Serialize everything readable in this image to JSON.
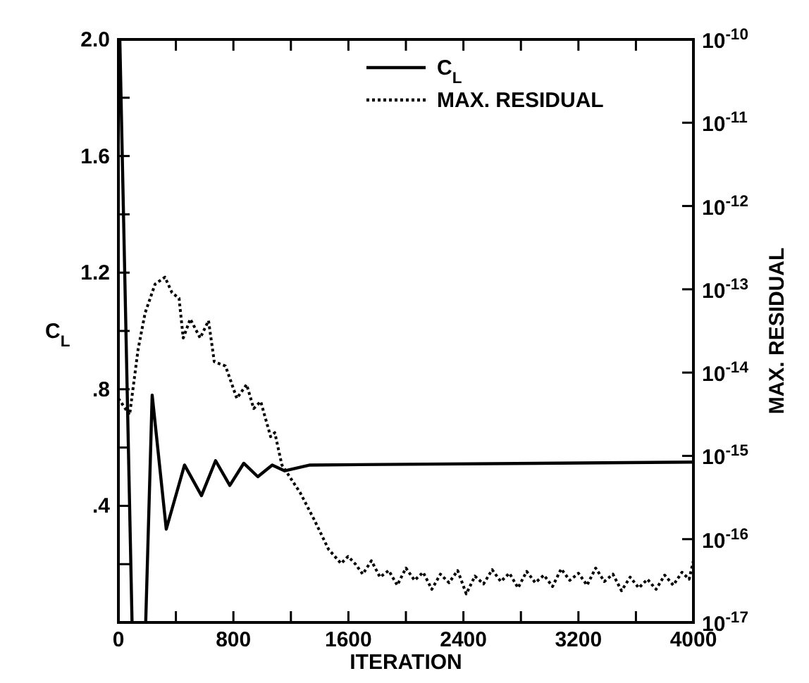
{
  "chart_data": {
    "type": "line",
    "xlabel": "ITERATION",
    "ylabel": "C$_{L}$",
    "y2label": "MAX. RESIDUAL",
    "legend": "top right",
    "grid": false,
    "xlim": [
      0,
      4000
    ],
    "xticks": [
      0,
      {
        "value": 400,
        "label": null
      },
      800,
      {
        "value": 1200,
        "label": null
      },
      1600,
      {
        "value": 2000,
        "label": null
      },
      2400,
      {
        "value": 2800,
        "label": null
      },
      3200,
      {
        "value": 3600,
        "label": null
      },
      4000
    ],
    "ylim": [
      0,
      2
    ],
    "yticks": [
      {
        "value": 0,
        "label": null
      },
      {
        "value": 0.2,
        "label": null
      },
      {
        "value": 0.4,
        "label": ".4"
      },
      {
        "value": 0.6,
        "label": null
      },
      {
        "value": 0.8,
        "label": ".8"
      },
      {
        "value": 1.0,
        "label": null
      },
      {
        "value": 1.2,
        "label": "1.2"
      },
      {
        "value": 1.4,
        "label": null
      },
      {
        "value": 1.6,
        "label": "1.6"
      },
      {
        "value": 1.8,
        "label": null
      },
      {
        "value": 2.0,
        "label": "2.0"
      }
    ],
    "log": "y2",
    "y2lim": [
      1e-17,
      1e-10
    ],
    "y2ticks": [
      {
        "value": 1e-17,
        "label": "10$^{-17}$"
      },
      {
        "value": 1e-16,
        "label": "10$^{-16}$"
      },
      {
        "value": 1e-15,
        "label": "10$^{-15}$"
      },
      {
        "value": 1e-14,
        "label": "10$^{-14}$"
      },
      {
        "value": 1e-13,
        "label": "10$^{-13}$"
      },
      {
        "value": 1e-12,
        "label": "10$^{-12}$"
      },
      {
        "value": 1e-11,
        "label": "10$^{-11}$"
      },
      {
        "value": 1e-10,
        "label": "10$^{-10}$"
      }
    ],
    "series": [
      {
        "name": "C$_{L}$",
        "color": "#000000",
        "line_style": "solid",
        "x": [
          10,
          95,
          150,
          190,
          235,
          333,
          460,
          578,
          676,
          775,
          872,
          970,
          1070,
          1157,
          1333,
          4000
        ],
        "values": [
          2.0,
          0,
          null,
          0,
          0.78,
          0.32,
          0.54,
          0.435,
          0.555,
          0.47,
          0.546,
          0.5,
          0.54,
          0.52,
          0.54,
          0.55
        ]
      },
      {
        "name": "MAX. RESIDUAL",
        "color": "#000000",
        "line_style": "dotted",
        "axis": "y2",
        "x": [
          0,
          78,
          137,
          186,
          255,
          324,
          373,
          422,
          451,
          500,
          569,
          627,
          667,
          745,
          824,
          892,
          941,
          990,
          1059,
          1088,
          1137,
          1265,
          1363,
          1461,
          1549,
          1598,
          1650,
          1700,
          1760,
          1820,
          1880,
          1940,
          2000,
          2060,
          2120,
          2180,
          2240,
          2300,
          2360,
          2420,
          2480,
          2540,
          2600,
          2660,
          2720,
          2780,
          2840,
          2900,
          2960,
          3020,
          3080,
          3140,
          3200,
          3260,
          3320,
          3380,
          3440,
          3500,
          3560,
          3620,
          3680,
          3740,
          3800,
          3860,
          3920,
          3970,
          4000
        ],
        "values": [
          4.9e-15,
          3.1e-15,
          1.9e-14,
          5.2e-14,
          1.15e-13,
          1.4e-13,
          9.1e-14,
          7.8e-14,
          2.6e-14,
          4.4e-14,
          2.6e-14,
          4.2e-14,
          1.35e-14,
          1.2e-14,
          4.9e-15,
          7.2e-15,
          3.7e-15,
          4.5e-15,
          1.7e-15,
          1.9e-15,
          7.8e-16,
          3.6e-16,
          1.7e-16,
          7.6e-17,
          5.1e-17,
          6.2e-17,
          5e-17,
          3.8e-17,
          5.5e-17,
          3.5e-17,
          4.2e-17,
          2.8e-17,
          4.5e-17,
          3.2e-17,
          4e-17,
          2.5e-17,
          3.8e-17,
          3e-17,
          4.2e-17,
          2.2e-17,
          3.6e-17,
          2.9e-17,
          4.3e-17,
          3.1e-17,
          3.9e-17,
          2.6e-17,
          4.1e-17,
          3e-17,
          3.7e-17,
          2.7e-17,
          4.4e-17,
          3.2e-17,
          3.9e-17,
          2.8e-17,
          4.5e-17,
          3.1e-17,
          3.8e-17,
          2.4e-17,
          3.5e-17,
          2.6e-17,
          3.3e-17,
          2.5e-17,
          3.7e-17,
          2.8e-17,
          4e-17,
          3.3e-17,
          5.5e-17
        ]
      }
    ]
  }
}
